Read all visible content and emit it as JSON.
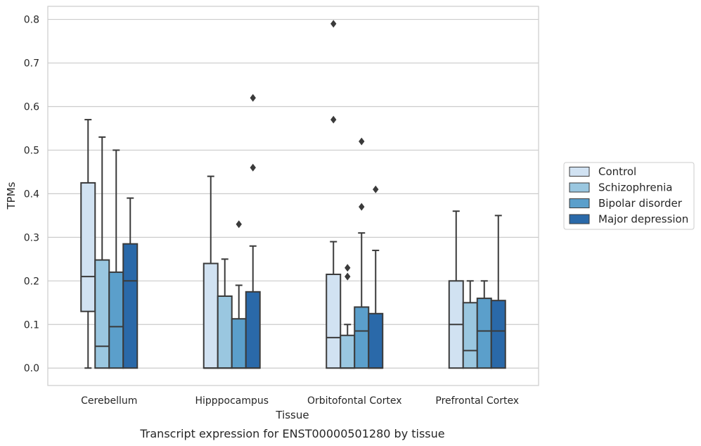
{
  "chart_data": {
    "type": "box",
    "caption": "Transcript expression for ENST00000501280 by tissue",
    "xlabel": "Tissue",
    "ylabel": "TPMs",
    "ylim": [
      -0.04,
      0.83
    ],
    "yticks": [
      "0.0",
      "0.1",
      "0.2",
      "0.3",
      "0.4",
      "0.5",
      "0.6",
      "0.7",
      "0.8"
    ],
    "grid": true,
    "legend_position": "right",
    "categories": [
      "Cerebellum",
      "Hipppocampus",
      "Orbitofontal Cortex",
      "Prefrontal Cortex"
    ],
    "series": [
      {
        "name": "Control",
        "color": "#d1e2f2",
        "boxes": [
          {
            "whislo": 0.0,
            "q1": 0.13,
            "med": 0.21,
            "q3": 0.425,
            "whishi": 0.57,
            "fliers": []
          },
          {
            "whislo": 0.0,
            "q1": 0.0,
            "med": 0.0,
            "q3": 0.24,
            "whishi": 0.44,
            "fliers": []
          },
          {
            "whislo": 0.0,
            "q1": 0.0,
            "med": 0.07,
            "q3": 0.215,
            "whishi": 0.29,
            "fliers": [
              0.57,
              0.79
            ]
          },
          {
            "whislo": 0.0,
            "q1": 0.0,
            "med": 0.1,
            "q3": 0.2,
            "whishi": 0.36,
            "fliers": []
          }
        ]
      },
      {
        "name": "Schizophrenia",
        "color": "#9ac7e0",
        "boxes": [
          {
            "whislo": 0.0,
            "q1": 0.0,
            "med": 0.05,
            "q3": 0.248,
            "whishi": 0.53,
            "fliers": []
          },
          {
            "whislo": 0.0,
            "q1": 0.0,
            "med": 0.0,
            "q3": 0.165,
            "whishi": 0.25,
            "fliers": []
          },
          {
            "whislo": 0.0,
            "q1": 0.0,
            "med": 0.0,
            "q3": 0.075,
            "whishi": 0.1,
            "fliers": [
              0.21,
              0.23
            ]
          },
          {
            "whislo": 0.0,
            "q1": 0.0,
            "med": 0.04,
            "q3": 0.15,
            "whishi": 0.2,
            "fliers": []
          }
        ]
      },
      {
        "name": "Bipolar disorder",
        "color": "#5b9fcb",
        "boxes": [
          {
            "whislo": 0.0,
            "q1": 0.0,
            "med": 0.095,
            "q3": 0.22,
            "whishi": 0.5,
            "fliers": []
          },
          {
            "whislo": 0.0,
            "q1": 0.0,
            "med": 0.0,
            "q3": 0.113,
            "whishi": 0.19,
            "fliers": [
              0.33
            ]
          },
          {
            "whislo": 0.0,
            "q1": 0.0,
            "med": 0.085,
            "q3": 0.14,
            "whishi": 0.31,
            "fliers": [
              0.37,
              0.52
            ]
          },
          {
            "whislo": 0.0,
            "q1": 0.0,
            "med": 0.085,
            "q3": 0.16,
            "whishi": 0.2,
            "fliers": []
          }
        ]
      },
      {
        "name": "Major depression",
        "color": "#2a69a9",
        "boxes": [
          {
            "whislo": 0.0,
            "q1": 0.0,
            "med": 0.2,
            "q3": 0.285,
            "whishi": 0.39,
            "fliers": []
          },
          {
            "whislo": 0.0,
            "q1": 0.0,
            "med": 0.0,
            "q3": 0.175,
            "whishi": 0.28,
            "fliers": [
              0.46,
              0.62
            ]
          },
          {
            "whislo": 0.0,
            "q1": 0.0,
            "med": 0.0,
            "q3": 0.125,
            "whishi": 0.27,
            "fliers": [
              0.41
            ]
          },
          {
            "whislo": 0.0,
            "q1": 0.0,
            "med": 0.085,
            "q3": 0.155,
            "whishi": 0.35,
            "fliers": []
          }
        ]
      }
    ]
  }
}
